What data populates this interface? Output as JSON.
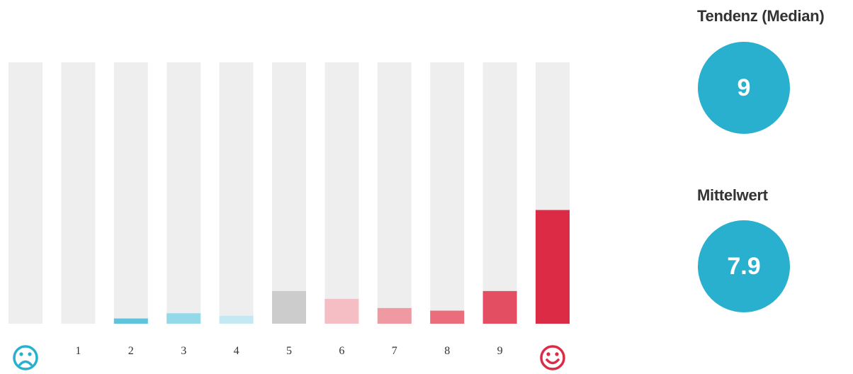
{
  "chart_data": {
    "type": "bar",
    "categories": [
      "",
      "1",
      "2",
      "3",
      "4",
      "5",
      "6",
      "7",
      "8",
      "9",
      ""
    ],
    "values": [
      0,
      0,
      0.02,
      0.04,
      0.03,
      0.125,
      0.095,
      0.06,
      0.05,
      0.125,
      0.435
    ],
    "colors": [
      "#29b0cf",
      "#29b0cf",
      "#5fc3dd",
      "#94d9e8",
      "#c3e9f2",
      "#cccccc",
      "#f4bec4",
      "#ef99a3",
      "#ea6d7c",
      "#e34e62",
      "#dc2c45"
    ],
    "track_color": "#eeeeee",
    "ylim": [
      0,
      1
    ],
    "left_label_icon": "sad-face-icon",
    "right_label_icon": "happy-face-icon",
    "sad_color": "#29b0cf",
    "happy_color": "#dc2c45"
  },
  "summary": {
    "median_title": "Tendenz (Median)",
    "median_value": "9",
    "mean_title": "Mittelwert",
    "mean_value": "7.9",
    "bubble_color": "#29b0cf"
  }
}
